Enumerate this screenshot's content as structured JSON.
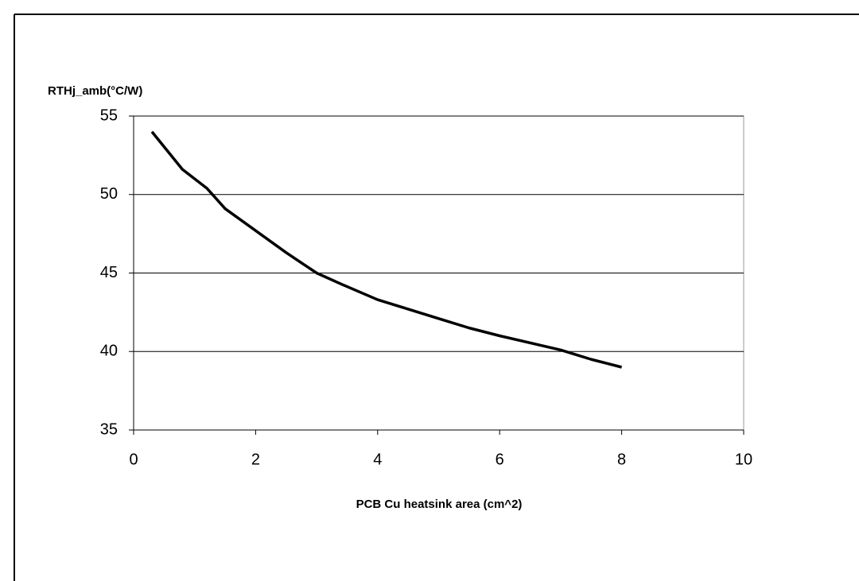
{
  "chart_data": {
    "type": "line",
    "y_label": "RTHj_amb(°C/W)",
    "x_label": "PCB Cu heatsink area (cm^2)",
    "x": [
      0.3,
      0.8,
      1.2,
      1.5,
      2,
      2.5,
      3,
      3.4,
      4,
      4.5,
      5,
      5.5,
      6,
      7,
      7.5,
      8
    ],
    "series": [
      {
        "color": "#000000",
        "values": [
          54,
          51.6,
          50.4,
          49.1,
          47.7,
          46.3,
          45,
          44.3,
          43.3,
          42.7,
          42.1,
          41.5,
          41,
          40.1,
          39.5,
          39
        ]
      }
    ],
    "xlim": [
      0,
      10
    ],
    "xticks": [
      0,
      2,
      4,
      6,
      8,
      10
    ],
    "ylim": [
      35,
      55
    ],
    "yticks": [
      35,
      40,
      45,
      50,
      55
    ],
    "grid": true
  }
}
